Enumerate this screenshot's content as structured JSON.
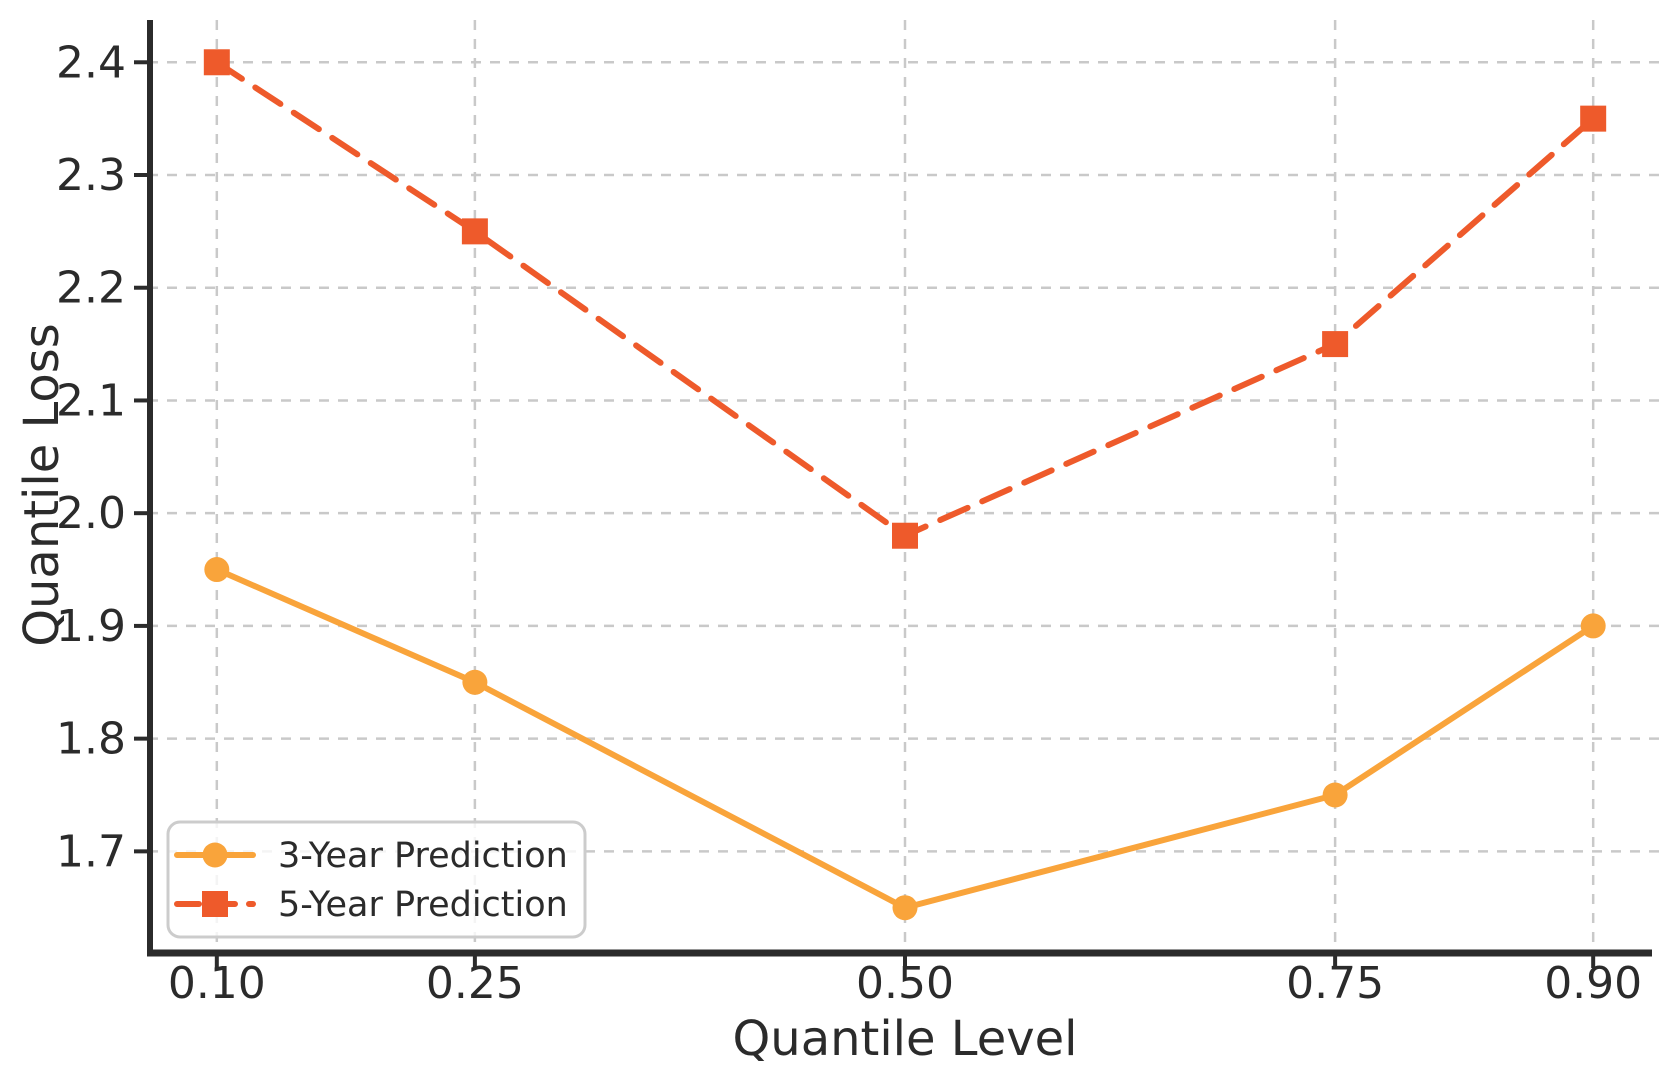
{
  "chart_data": {
    "type": "line",
    "title": "",
    "xlabel": "Quantile Level",
    "ylabel": "Quantile Loss",
    "x": [
      0.1,
      0.25,
      0.5,
      0.75,
      0.9
    ],
    "x_tick_labels": [
      "0.10",
      "0.25",
      "0.50",
      "0.75",
      "0.90"
    ],
    "y_ticks": [
      1.7,
      1.8,
      1.9,
      2.0,
      2.1,
      2.2,
      2.3,
      2.4
    ],
    "y_tick_labels": [
      "1.7",
      "1.8",
      "1.9",
      "2.0",
      "2.1",
      "2.2",
      "2.3",
      "2.4"
    ],
    "xlim": [
      0.06,
      0.94
    ],
    "ylim": [
      1.6125,
      2.4375
    ],
    "grid": true,
    "grid_style": "dashed",
    "legend_position": "lower-left",
    "series": [
      {
        "name": "3-Year Prediction",
        "values": [
          1.95,
          1.85,
          1.65,
          1.75,
          1.9
        ],
        "color": "#F9A43B",
        "line_style": "solid",
        "marker": "circle"
      },
      {
        "name": "5-Year Prediction",
        "values": [
          2.4,
          2.25,
          1.98,
          2.15,
          2.35
        ],
        "color": "#EE5A2B",
        "line_style": "dashed",
        "marker": "square"
      }
    ],
    "style": {
      "background": "#ffffff",
      "grid_color": "#c9c9c9",
      "spine_color": "#2b2b2b",
      "text_color": "#2b2b2b",
      "legend_bg": "#ffffff",
      "legend_border": "#cccccc"
    }
  }
}
